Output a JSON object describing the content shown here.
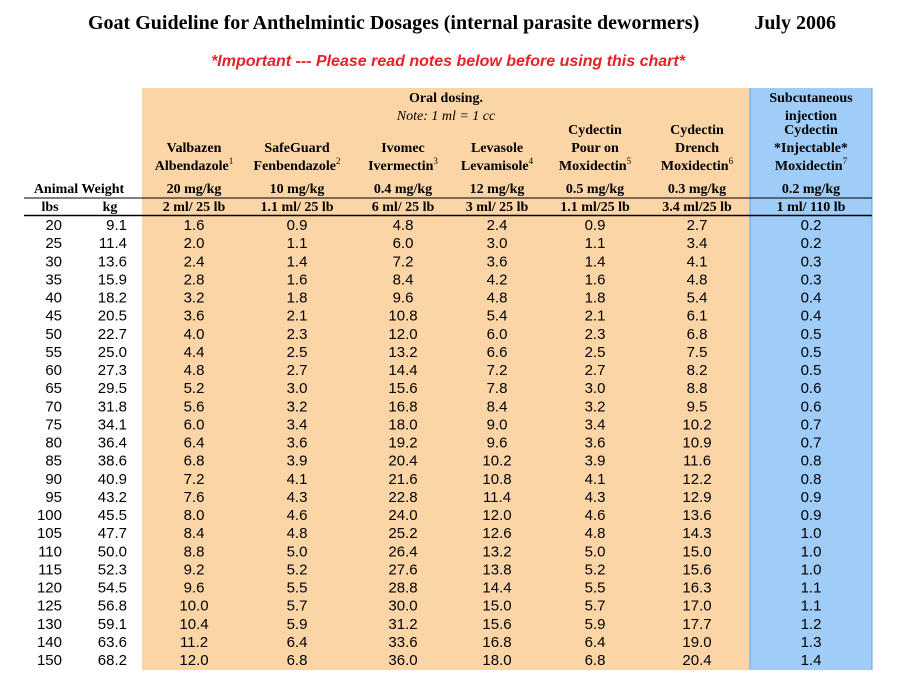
{
  "header": {
    "title": "Goat Guideline for Anthelmintic Dosages (internal parasite dewormers)",
    "date": "July 2006",
    "subtitle": "*Important --- Please read notes below before using this chart*"
  },
  "table": {
    "oral_header": [
      "Oral dosing.",
      "Note: 1 ml = 1 cc"
    ],
    "injection_header": [
      "Subcutaneous",
      "injection"
    ],
    "weight_header": "Animal Weight",
    "units": [
      "lbs",
      "kg"
    ],
    "drugs": [
      {
        "lines": [
          "Valbazen",
          "Albendazole"
        ],
        "note": "1",
        "dose": "20 mg/kg",
        "rate": "2 ml/ 25 lb"
      },
      {
        "lines": [
          "SafeGuard",
          "Fenbendazole"
        ],
        "note": "2",
        "dose": "10 mg/kg",
        "rate": "1.1 ml/ 25 lb"
      },
      {
        "lines": [
          "Ivomec",
          "Ivermectin"
        ],
        "note": "3",
        "dose": "0.4 mg/kg",
        "rate": "6 ml/ 25 lb"
      },
      {
        "lines": [
          "Levasole",
          "Levamisole"
        ],
        "note": "4",
        "dose": "12 mg/kg",
        "rate": "3 ml/ 25 lb"
      },
      {
        "lines": [
          "Cydectin",
          "Pour on",
          "Moxidectin"
        ],
        "note": "5",
        "dose": "0.5 mg/kg",
        "rate": "1.1 ml/25 lb"
      },
      {
        "lines": [
          "Cydectin",
          "Drench",
          "Moxidectin"
        ],
        "note": "6",
        "dose": "0.3 mg/kg",
        "rate": "3.4 ml/25 lb"
      },
      {
        "lines": [
          "Cydectin",
          "*Injectable*",
          "Moxidectin"
        ],
        "note": "7",
        "dose": "0.2 mg/kg",
        "rate": "1 ml/ 110 lb"
      }
    ],
    "rows": [
      [
        "20",
        "9.1",
        "1.6",
        "0.9",
        "4.8",
        "2.4",
        "0.9",
        "2.7",
        "0.2"
      ],
      [
        "25",
        "11.4",
        "2.0",
        "1.1",
        "6.0",
        "3.0",
        "1.1",
        "3.4",
        "0.2"
      ],
      [
        "30",
        "13.6",
        "2.4",
        "1.4",
        "7.2",
        "3.6",
        "1.4",
        "4.1",
        "0.3"
      ],
      [
        "35",
        "15.9",
        "2.8",
        "1.6",
        "8.4",
        "4.2",
        "1.6",
        "4.8",
        "0.3"
      ],
      [
        "40",
        "18.2",
        "3.2",
        "1.8",
        "9.6",
        "4.8",
        "1.8",
        "5.4",
        "0.4"
      ],
      [
        "45",
        "20.5",
        "3.6",
        "2.1",
        "10.8",
        "5.4",
        "2.1",
        "6.1",
        "0.4"
      ],
      [
        "50",
        "22.7",
        "4.0",
        "2.3",
        "12.0",
        "6.0",
        "2.3",
        "6.8",
        "0.5"
      ],
      [
        "55",
        "25.0",
        "4.4",
        "2.5",
        "13.2",
        "6.6",
        "2.5",
        "7.5",
        "0.5"
      ],
      [
        "60",
        "27.3",
        "4.8",
        "2.7",
        "14.4",
        "7.2",
        "2.7",
        "8.2",
        "0.5"
      ],
      [
        "65",
        "29.5",
        "5.2",
        "3.0",
        "15.6",
        "7.8",
        "3.0",
        "8.8",
        "0.6"
      ],
      [
        "70",
        "31.8",
        "5.6",
        "3.2",
        "16.8",
        "8.4",
        "3.2",
        "9.5",
        "0.6"
      ],
      [
        "75",
        "34.1",
        "6.0",
        "3.4",
        "18.0",
        "9.0",
        "3.4",
        "10.2",
        "0.7"
      ],
      [
        "80",
        "36.4",
        "6.4",
        "3.6",
        "19.2",
        "9.6",
        "3.6",
        "10.9",
        "0.7"
      ],
      [
        "85",
        "38.6",
        "6.8",
        "3.9",
        "20.4",
        "10.2",
        "3.9",
        "11.6",
        "0.8"
      ],
      [
        "90",
        "40.9",
        "7.2",
        "4.1",
        "21.6",
        "10.8",
        "4.1",
        "12.2",
        "0.8"
      ],
      [
        "95",
        "43.2",
        "7.6",
        "4.3",
        "22.8",
        "11.4",
        "4.3",
        "12.9",
        "0.9"
      ],
      [
        "100",
        "45.5",
        "8.0",
        "4.6",
        "24.0",
        "12.0",
        "4.6",
        "13.6",
        "0.9"
      ],
      [
        "105",
        "47.7",
        "8.4",
        "4.8",
        "25.2",
        "12.6",
        "4.8",
        "14.3",
        "1.0"
      ],
      [
        "110",
        "50.0",
        "8.8",
        "5.0",
        "26.4",
        "13.2",
        "5.0",
        "15.0",
        "1.0"
      ],
      [
        "115",
        "52.3",
        "9.2",
        "5.2",
        "27.6",
        "13.8",
        "5.2",
        "15.6",
        "1.0"
      ],
      [
        "120",
        "54.5",
        "9.6",
        "5.5",
        "28.8",
        "14.4",
        "5.5",
        "16.3",
        "1.1"
      ],
      [
        "125",
        "56.8",
        "10.0",
        "5.7",
        "30.0",
        "15.0",
        "5.7",
        "17.0",
        "1.1"
      ],
      [
        "130",
        "59.1",
        "10.4",
        "5.9",
        "31.2",
        "15.6",
        "5.9",
        "17.7",
        "1.2"
      ],
      [
        "140",
        "63.6",
        "11.2",
        "6.4",
        "33.6",
        "16.8",
        "6.4",
        "19.0",
        "1.3"
      ],
      [
        "150",
        "68.2",
        "12.0",
        "6.8",
        "36.0",
        "18.0",
        "6.8",
        "20.4",
        "1.4"
      ]
    ]
  }
}
